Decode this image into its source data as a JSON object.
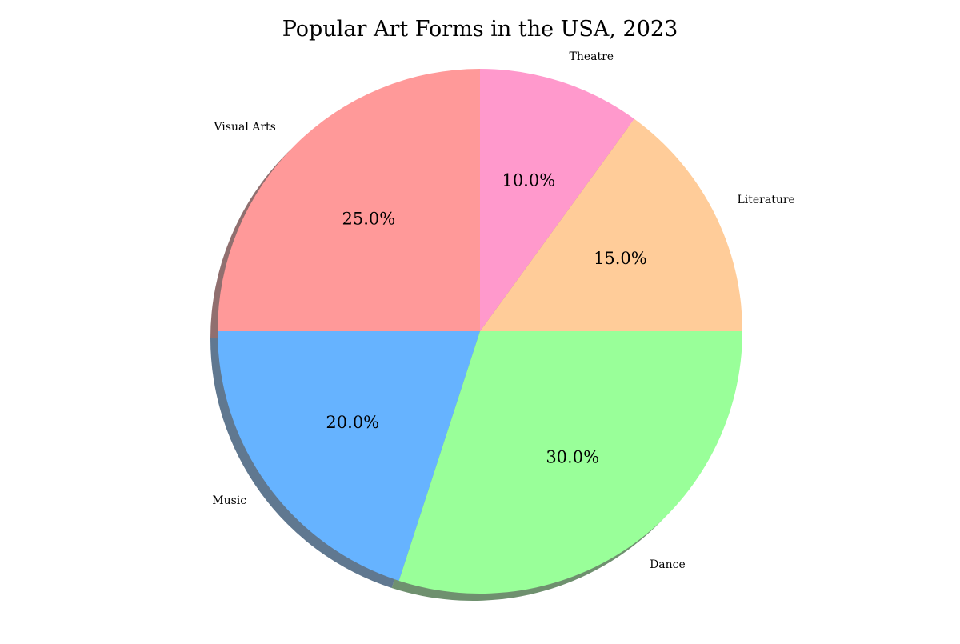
{
  "chart_data": {
    "type": "pie",
    "title": "Popular Art Forms in the USA, 2023",
    "start_angle_deg": 90,
    "direction": "counterclockwise",
    "shadow": true,
    "slices": [
      {
        "label": "Visual Arts",
        "value": 25.0,
        "pct_label": "25.0%",
        "color": "#ff9999"
      },
      {
        "label": "Music",
        "value": 20.0,
        "pct_label": "20.0%",
        "color": "#66b3ff"
      },
      {
        "label": "Dance",
        "value": 30.0,
        "pct_label": "30.0%",
        "color": "#99ff99"
      },
      {
        "label": "Literature",
        "value": 15.0,
        "pct_label": "15.0%",
        "color": "#ffcc99"
      },
      {
        "label": "Theatre",
        "value": 10.0,
        "pct_label": "10.0%",
        "color": "#ff99cc"
      }
    ]
  }
}
